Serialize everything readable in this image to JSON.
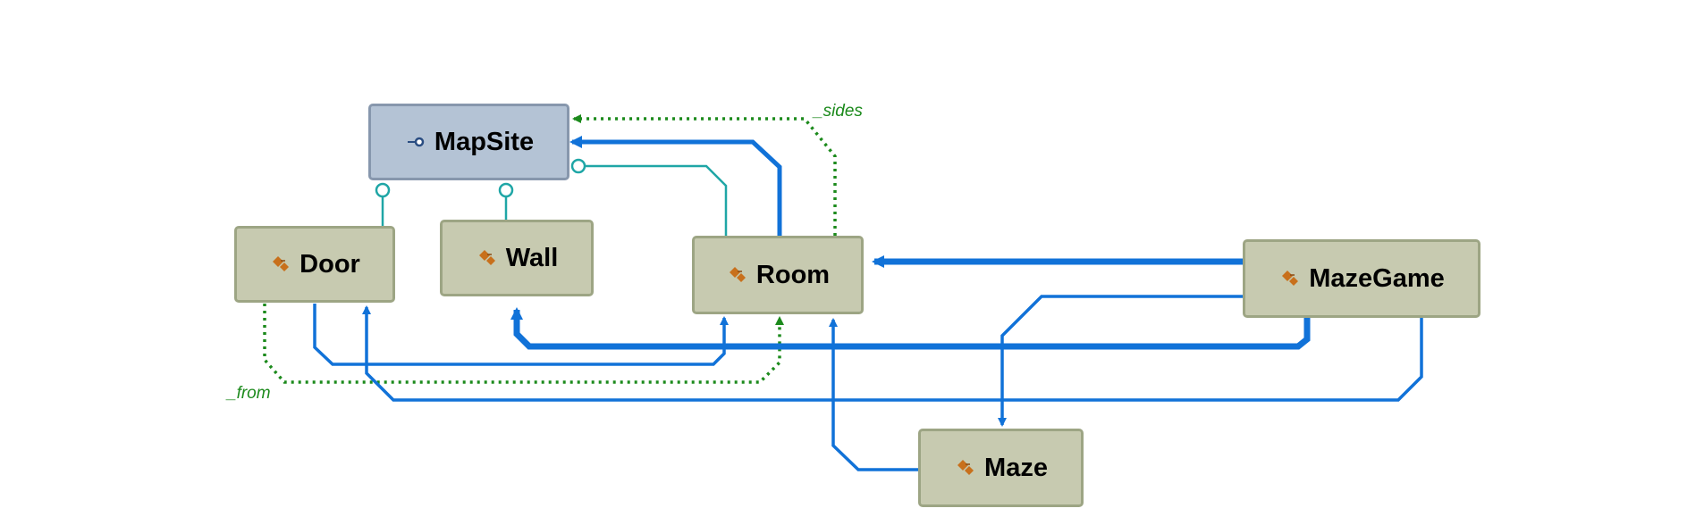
{
  "diagram": {
    "nodes": [
      {
        "id": "mapsite",
        "label": "MapSite",
        "kind": "interface"
      },
      {
        "id": "door",
        "label": "Door",
        "kind": "class"
      },
      {
        "id": "wall",
        "label": "Wall",
        "kind": "class"
      },
      {
        "id": "room",
        "label": "Room",
        "kind": "class"
      },
      {
        "id": "mazegame",
        "label": "MazeGame",
        "kind": "class"
      },
      {
        "id": "maze",
        "label": "Maze",
        "kind": "class"
      }
    ],
    "edge_labels": {
      "sides": "_sides",
      "from": "_from"
    },
    "edges": [
      {
        "from": "door",
        "to": "mapsite",
        "type": "implements"
      },
      {
        "from": "wall",
        "to": "mapsite",
        "type": "implements"
      },
      {
        "from": "room",
        "to": "mapsite",
        "type": "implements"
      },
      {
        "from": "room",
        "to": "mapsite",
        "type": "association",
        "label": "_sides"
      },
      {
        "from": "room",
        "to": "mapsite",
        "type": "dependency"
      },
      {
        "from": "door",
        "to": "room",
        "type": "association",
        "label": "_from"
      },
      {
        "from": "door",
        "to": "room",
        "type": "dependency"
      },
      {
        "from": "mazegame",
        "to": "room",
        "type": "dependency"
      },
      {
        "from": "mazegame",
        "to": "wall",
        "type": "dependency"
      },
      {
        "from": "mazegame",
        "to": "door",
        "type": "dependency"
      },
      {
        "from": "mazegame",
        "to": "maze",
        "type": "dependency"
      },
      {
        "from": "maze",
        "to": "room",
        "type": "dependency"
      }
    ],
    "colors": {
      "class_fill": "#c7cab0",
      "class_border": "#9da584",
      "interface_fill": "#b4c3d5",
      "interface_border": "#8797ad",
      "dependency": "#1172d8",
      "implements": "#1fa6a6",
      "association": "#1c8a1c"
    }
  }
}
